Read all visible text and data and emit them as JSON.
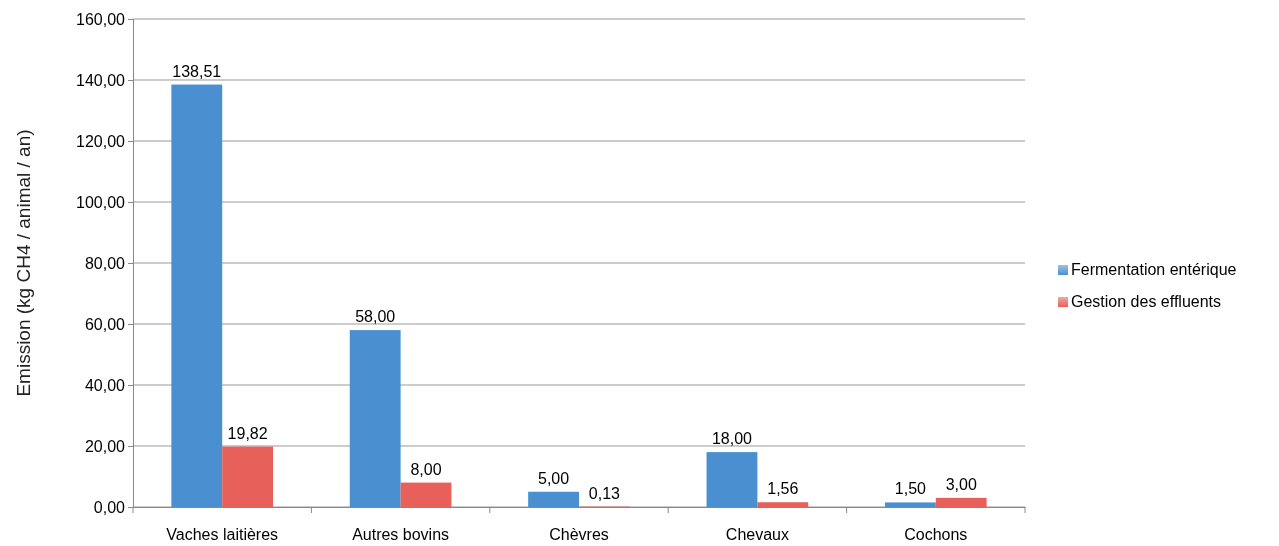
{
  "chart_data": {
    "type": "bar",
    "ylabel": "Emission (kg CH4 / animal / an)",
    "categories": [
      "Vaches laitières",
      "Autres bovins",
      "Chèvres",
      "Chevaux",
      "Cochons"
    ],
    "series": [
      {
        "name": "Fermentation entérique",
        "color": "#4a90d0",
        "values": [
          138.51,
          58,
          5,
          18,
          1.5
        ],
        "value_labels": [
          "138,51",
          "58,00",
          "5,00",
          "18,00",
          "1,50"
        ]
      },
      {
        "name": "Gestion des effluents",
        "color": "#e8605a",
        "values": [
          19.82,
          8,
          0.13,
          1.56,
          3
        ],
        "value_labels": [
          "19,82",
          "8,00",
          "0,13",
          "1,56",
          "3,00"
        ]
      }
    ],
    "ylim": [
      0,
      160
    ],
    "yticks": [
      {
        "value": 0,
        "label": "0,00"
      },
      {
        "value": 20,
        "label": "20,00"
      },
      {
        "value": 40,
        "label": "40,00"
      },
      {
        "value": 60,
        "label": "60,00"
      },
      {
        "value": 80,
        "label": "80,00"
      },
      {
        "value": 100,
        "label": "100,00"
      },
      {
        "value": 120,
        "label": "120,00"
      },
      {
        "value": 140,
        "label": "140,00"
      },
      {
        "value": 160,
        "label": "160,00"
      }
    ],
    "grid": "y",
    "legend": "right"
  }
}
